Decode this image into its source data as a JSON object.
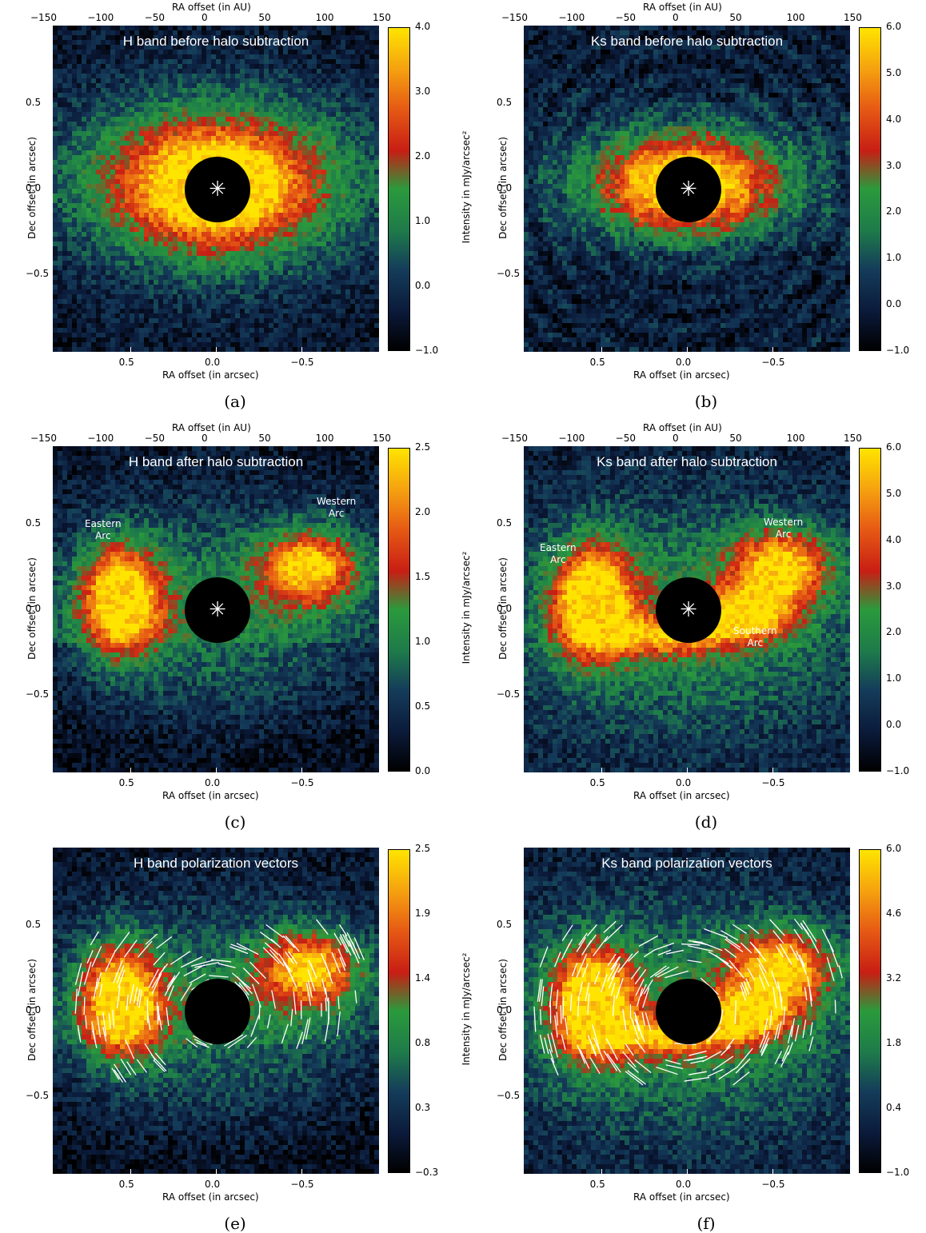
{
  "chart_data": [
    {
      "type": "heatmap",
      "caption": "(a)",
      "title": "H band before halo subtraction",
      "xlabel": "RA offset (in arcsec)",
      "ylabel": "Dec offset (in arcsec)",
      "top_xlabel": "RA offset (in AU)",
      "x_ticks": [
        "0.5",
        "0.0",
        "−0.5"
      ],
      "y_ticks": [
        "0.5",
        "0.0",
        "−0.5"
      ],
      "top_ticks": [
        "−150",
        "−100",
        "−50",
        "0",
        "50",
        "100",
        "150"
      ],
      "colorbar_label": "Intensity in mJy/arcsec²",
      "colorbar_ticks": [
        "4.0",
        "3.0",
        "2.0",
        "1.0",
        "0.0",
        "−1.0"
      ],
      "colorbar_range": [
        -1.0,
        4.0
      ],
      "xlim": [
        0.95,
        -0.95
      ],
      "ylim": [
        -0.95,
        0.95
      ],
      "features": "bright elliptical ring around central mask",
      "arc_labels": [],
      "show_star": true,
      "vectors": false
    },
    {
      "type": "heatmap",
      "caption": "(b)",
      "title": "Ks band before halo subtraction",
      "xlabel": "RA offset (in arcsec)",
      "ylabel": "Dec offset (in arcsec)",
      "top_xlabel": "RA offset (in AU)",
      "x_ticks": [
        "0.5",
        "0.0",
        "−0.5"
      ],
      "y_ticks": [
        "0.5",
        "0.0",
        "−0.5"
      ],
      "top_ticks": [
        "−150",
        "−100",
        "−50",
        "0",
        "50",
        "100",
        "150"
      ],
      "colorbar_label": "Intensity in mJy/arcsec²",
      "colorbar_ticks": [
        "6.0",
        "5.0",
        "4.0",
        "3.0",
        "2.0",
        "1.0",
        "0.0",
        "−1.0"
      ],
      "colorbar_range": [
        -1.0,
        6.0
      ],
      "xlim": [
        0.95,
        -0.95
      ],
      "ylim": [
        -0.95,
        0.95
      ],
      "features": "bright ring with concentric speckle rings",
      "arc_labels": [],
      "show_star": true,
      "vectors": false
    },
    {
      "type": "heatmap",
      "caption": "(c)",
      "title": "H band after halo subtraction",
      "xlabel": "RA offset (in arcsec)",
      "ylabel": "Dec offset (in arcsec)",
      "top_xlabel": "RA offset (in AU)",
      "x_ticks": [
        "0.5",
        "0.0",
        "−0.5"
      ],
      "y_ticks": [
        "0.5",
        "0.0",
        "−0.5"
      ],
      "top_ticks": [
        "−150",
        "−100",
        "−50",
        "0",
        "50",
        "100",
        "150"
      ],
      "colorbar_label": "Intensity in mJy/arcsec²",
      "colorbar_ticks": [
        "2.5",
        "2.0",
        "1.5",
        "1.0",
        "0.5",
        "0.0"
      ],
      "colorbar_range": [
        0.0,
        2.5
      ],
      "xlim": [
        0.95,
        -0.95
      ],
      "ylim": [
        -0.95,
        0.95
      ],
      "features": "eastern and western arcs",
      "arc_labels": [
        "Eastern\nArc",
        "Western\nArc"
      ],
      "show_star": true,
      "vectors": false
    },
    {
      "type": "heatmap",
      "caption": "(d)",
      "title": "Ks band after halo subtraction",
      "xlabel": "RA offset (in arcsec)",
      "ylabel": "Dec offset (in arcsec)",
      "top_xlabel": "RA offset (in AU)",
      "x_ticks": [
        "0.5",
        "0.0",
        "−0.5"
      ],
      "y_ticks": [
        "0.5",
        "0.0",
        "−0.5"
      ],
      "top_ticks": [
        "−150",
        "−100",
        "−50",
        "0",
        "50",
        "100",
        "150"
      ],
      "colorbar_label": "Intensity in mJy/arcsec²",
      "colorbar_ticks": [
        "6.0",
        "5.0",
        "4.0",
        "3.0",
        "2.0",
        "1.0",
        "0.0",
        "−1.0"
      ],
      "colorbar_range": [
        -1.0,
        6.0
      ],
      "xlim": [
        0.95,
        -0.95
      ],
      "ylim": [
        -0.95,
        0.95
      ],
      "features": "eastern, western and southern arcs",
      "arc_labels": [
        "Eastern\nArc",
        "Western\nArc",
        "Southern\nArc"
      ],
      "show_star": true,
      "vectors": false
    },
    {
      "type": "heatmap",
      "caption": "(e)",
      "title": "H band polarization vectors",
      "xlabel": "RA offset (in arcsec)",
      "ylabel": "Dec offset (in arcsec)",
      "top_xlabel": "",
      "x_ticks": [
        "0.5",
        "0.0",
        "−0.5"
      ],
      "y_ticks": [
        "0.5",
        "0.0",
        "−0.5"
      ],
      "top_ticks": [],
      "colorbar_label": "Intensity in mJy/arcsec²",
      "colorbar_ticks": [
        "2.5",
        "1.9",
        "1.4",
        "0.8",
        "0.3",
        "−0.3"
      ],
      "colorbar_range": [
        -0.3,
        2.5
      ],
      "xlim": [
        0.95,
        -0.95
      ],
      "ylim": [
        -0.95,
        0.95
      ],
      "features": "arcs overlaid with white polarization vectors",
      "arc_labels": [],
      "show_star": false,
      "vectors": true
    },
    {
      "type": "heatmap",
      "caption": "(f)",
      "title": "Ks band polarization vectors",
      "xlabel": "RA offset (in arcsec)",
      "ylabel": "Dec offset (in arcsec)",
      "top_xlabel": "",
      "x_ticks": [
        "0.5",
        "0.0",
        "−0.5"
      ],
      "y_ticks": [
        "0.5",
        "0.0",
        "−0.5"
      ],
      "top_ticks": [],
      "colorbar_label": "Intensity in mJy/arcsec²",
      "colorbar_ticks": [
        "6.0",
        "4.6",
        "3.2",
        "1.8",
        "0.4",
        "−1.0"
      ],
      "colorbar_range": [
        -1.0,
        6.0
      ],
      "xlim": [
        0.95,
        -0.95
      ],
      "ylim": [
        -0.95,
        0.95
      ],
      "features": "arcs overlaid with white polarization vectors",
      "arc_labels": [],
      "show_star": false,
      "vectors": true
    }
  ],
  "colormap": {
    "stops": [
      "#000000",
      "#0b1a3a",
      "#143c5a",
      "#1e7a4a",
      "#2a9a3c",
      "#c81e14",
      "#e65a14",
      "#f5a010",
      "#ffe400"
    ]
  }
}
